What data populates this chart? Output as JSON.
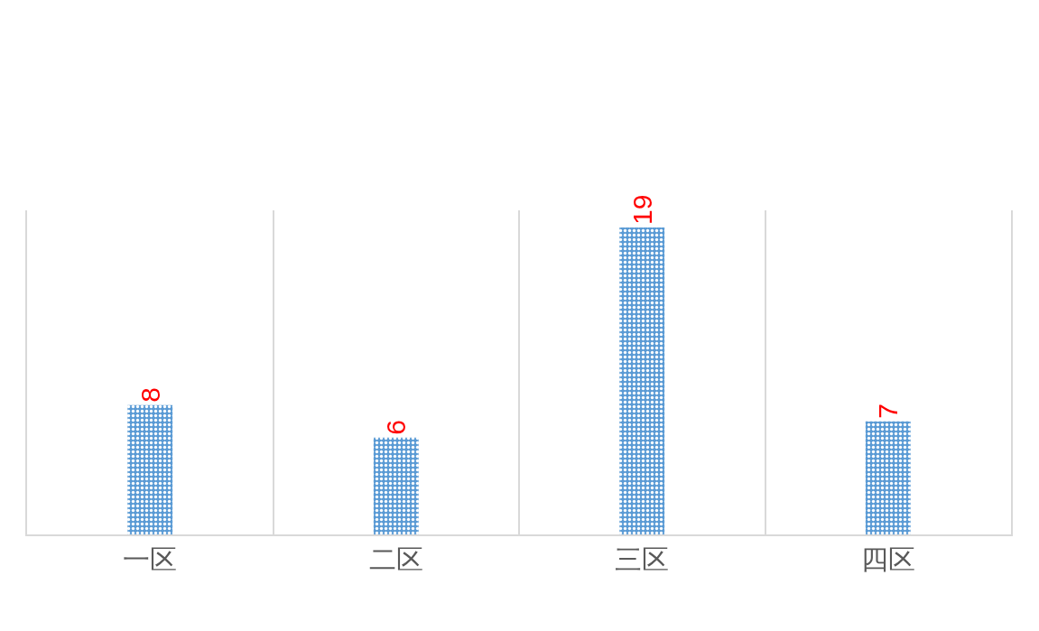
{
  "chart_data": {
    "type": "bar",
    "categories": [
      "一区",
      "二区",
      "三区",
      "四区"
    ],
    "values": [
      8,
      6,
      19,
      7
    ],
    "color": "#5b9bd5",
    "data_labels": true,
    "grid": "x"
  }
}
